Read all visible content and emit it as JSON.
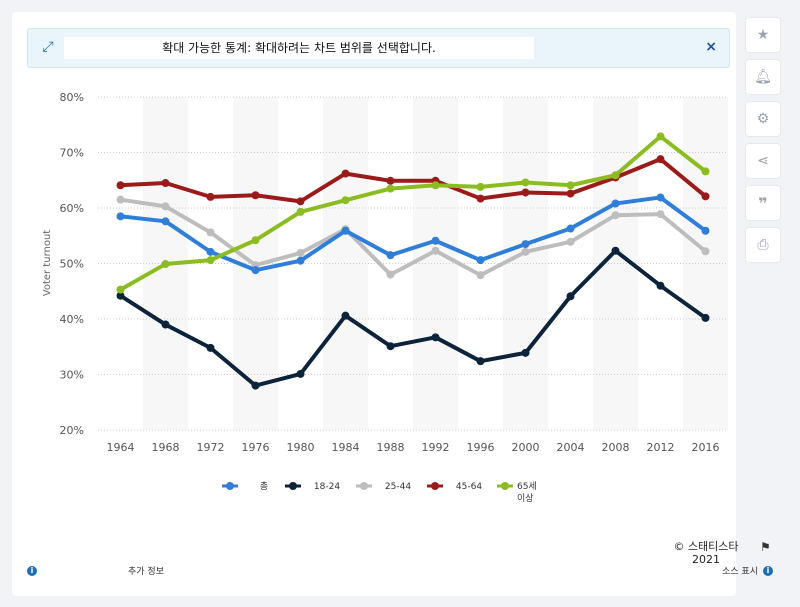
{
  "banner": {
    "message": "확대 가능한 통계: 확대하려는 차트 범위를 선택합니다.",
    "close_label": "×"
  },
  "sidebar": {
    "icons": [
      "star-icon",
      "bell-icon",
      "gear-icon",
      "share-icon",
      "quote-icon",
      "print-icon"
    ]
  },
  "footer": {
    "copyright": "© 스태티스타 2021",
    "more_info": "추가 정보",
    "source": "소스 표시"
  },
  "colors": {
    "총": "#2f7ed8",
    "18-24": "#0d233a",
    "25-44": "#bdbdbd",
    "45-64": "#9b1b1b",
    "65세 이상": "#8bbc21"
  },
  "chart_data": {
    "type": "line",
    "title": "",
    "xlabel": "",
    "ylabel": "Voter turnout",
    "ylim": [
      20,
      80
    ],
    "y_ticks": [
      "20%",
      "30%",
      "40%",
      "50%",
      "60%",
      "70%",
      "80%"
    ],
    "categories": [
      "1964",
      "1968",
      "1972",
      "1976",
      "1980",
      "1984",
      "1988",
      "1992",
      "1996",
      "2000",
      "2004",
      "2008",
      "2012",
      "2016"
    ],
    "legend_position": "bottom",
    "grid": true,
    "series": [
      {
        "name": "총",
        "values": [
          58.5,
          57.6,
          52.1,
          48.8,
          50.5,
          55.9,
          51.5,
          54.1,
          50.6,
          53.5,
          56.3,
          60.8,
          61.9,
          55.9
        ]
      },
      {
        "name": "18-24",
        "values": [
          44.2,
          39.0,
          34.8,
          28.0,
          30.1,
          40.6,
          35.1,
          36.7,
          32.4,
          33.9,
          44.1,
          52.3,
          46.0,
          40.2
        ]
      },
      {
        "name": "25-44",
        "values": [
          61.5,
          60.3,
          55.6,
          49.7,
          51.9,
          56.2,
          48.0,
          52.3,
          47.9,
          52.1,
          53.9,
          58.7,
          58.9,
          52.2
        ]
      },
      {
        "name": "45-64",
        "values": [
          64.1,
          64.5,
          62.0,
          62.3,
          61.2,
          66.2,
          64.9,
          64.9,
          61.7,
          62.8,
          62.6,
          65.5,
          68.8,
          62.1
        ]
      },
      {
        "name": "65세 이상",
        "values": [
          45.3,
          49.9,
          50.6,
          54.2,
          59.3,
          61.4,
          63.5,
          64.1,
          63.8,
          64.6,
          64.1,
          65.9,
          72.9,
          66.6
        ]
      }
    ]
  }
}
